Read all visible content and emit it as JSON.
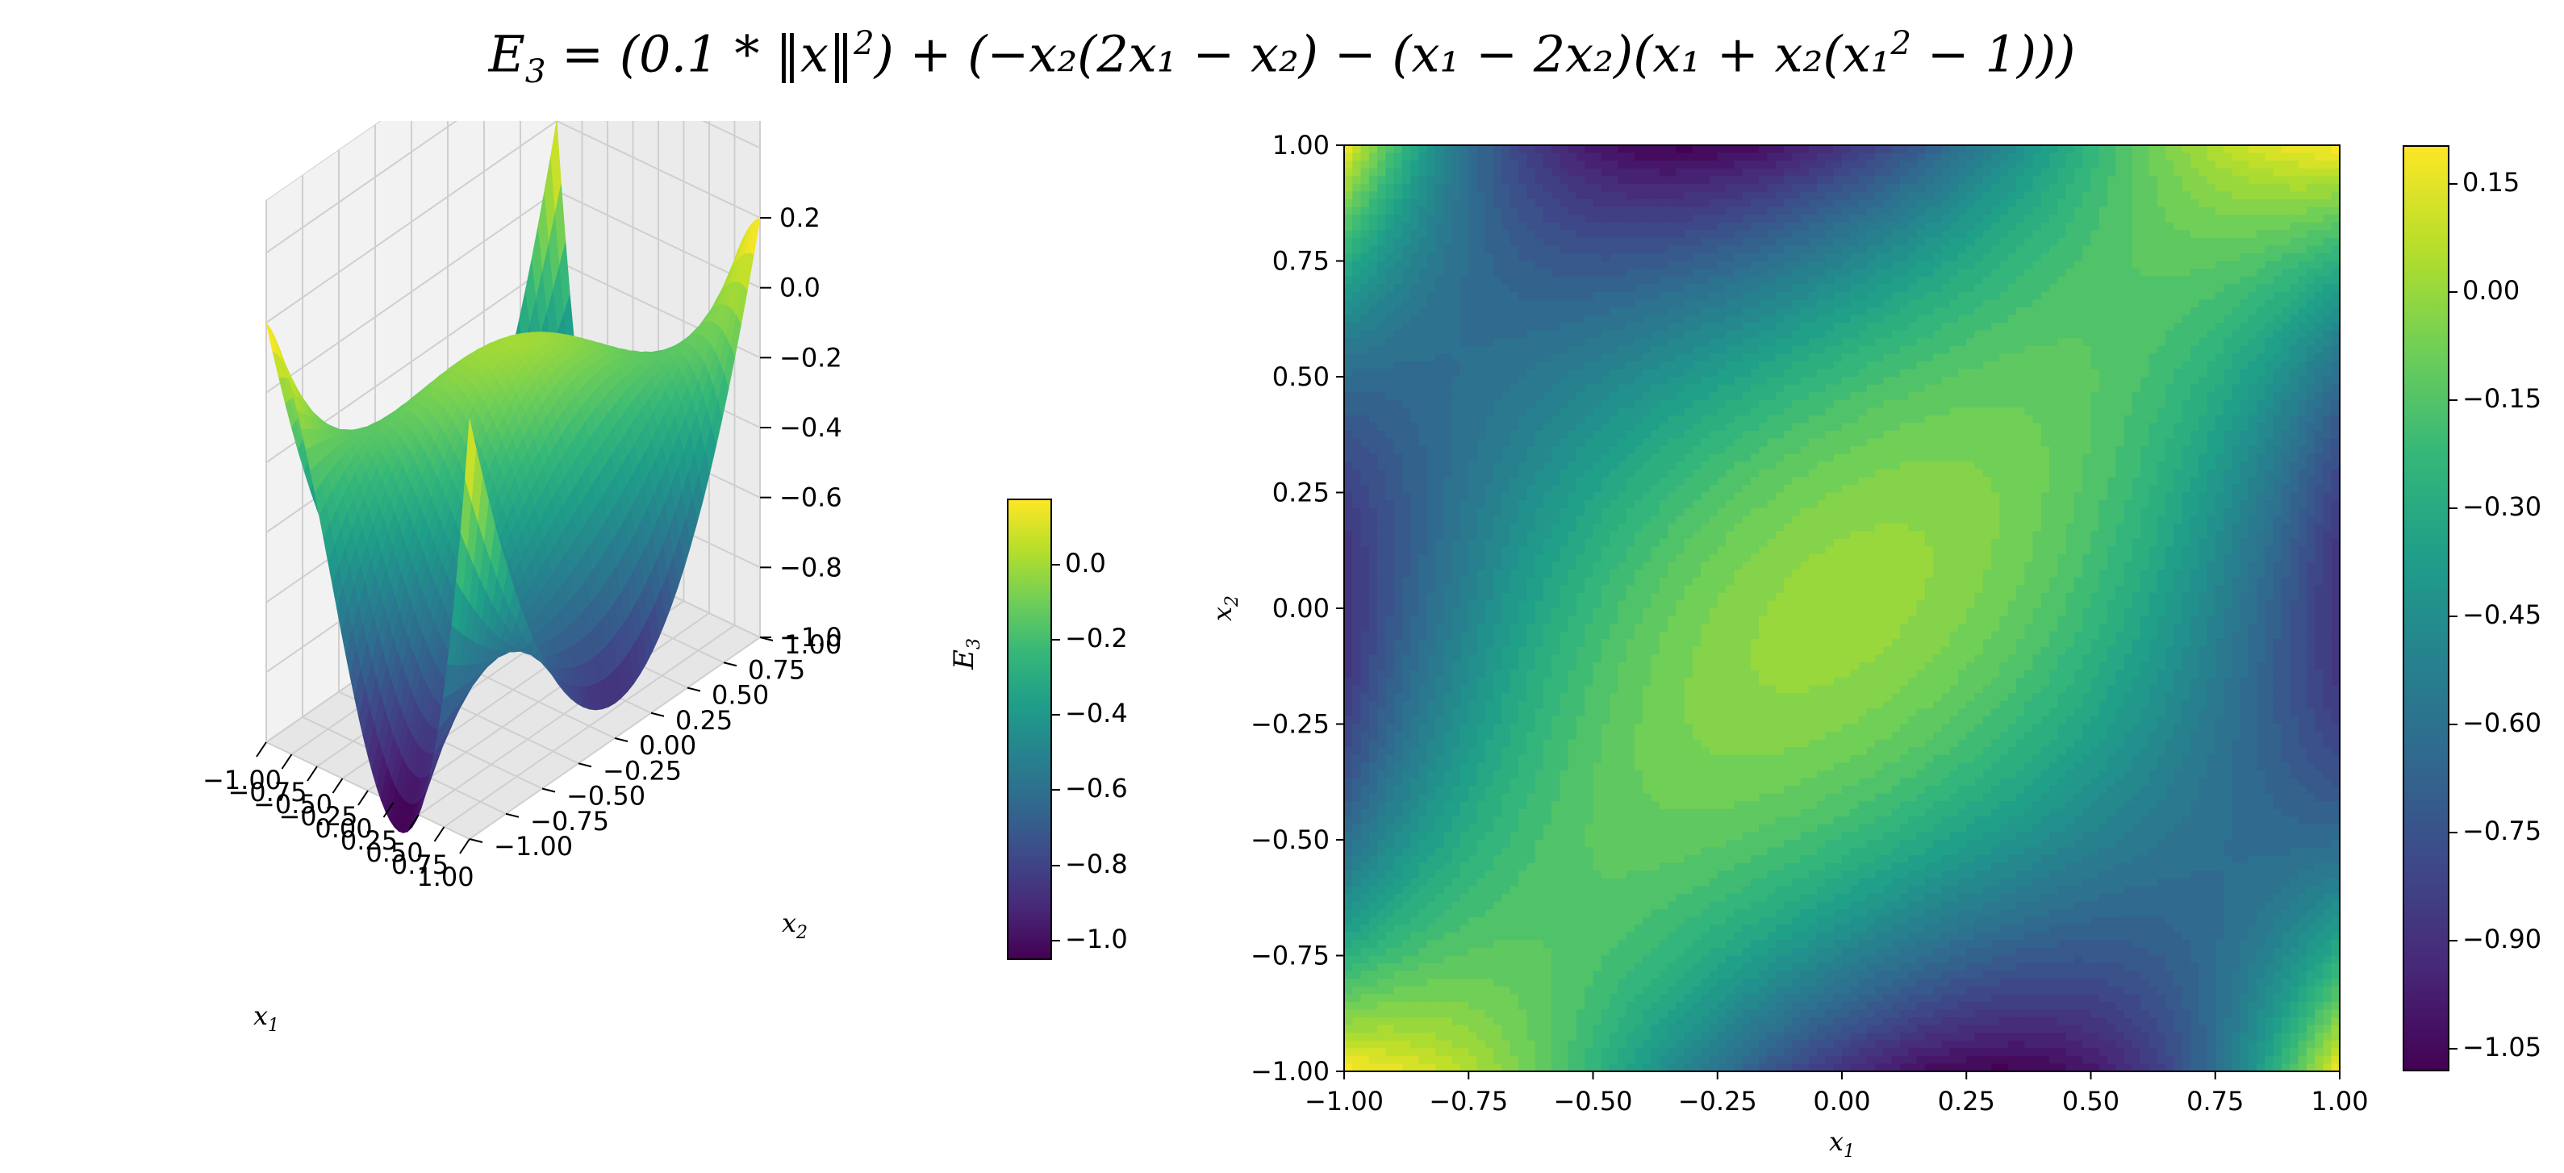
{
  "title": {
    "prefix": "E",
    "prefix_sub": "3",
    "body": " = (0.1 * ‖x‖",
    "sq": "2",
    "rest": ") + (−x₂(2x₁ − x₂) − (x₁ − 2x₂)(x₁ + x₂(x₁",
    "sq2": "2",
    "tail": " − 1)))"
  },
  "chart_data": [
    {
      "type": "surface",
      "title": "",
      "xlabel": "x1",
      "ylabel": "x2",
      "zlabel": "E3",
      "xlim": [
        -1.0,
        1.0
      ],
      "ylim": [
        -1.0,
        1.0
      ],
      "zlim": [
        -1.0,
        0.2
      ],
      "x_ticks": [
        "−1.00",
        "−0.75",
        "−0.50",
        "−0.25",
        "0.00",
        "0.25",
        "0.50",
        "0.75",
        "1.00"
      ],
      "y_ticks": [
        "−1.00",
        "−0.75",
        "−0.50",
        "−0.25",
        "0.00",
        "0.25",
        "0.50",
        "0.75",
        "1.00"
      ],
      "z_ticks": [
        "0.2",
        "0.0",
        "−0.2",
        "−0.4",
        "−0.6",
        "−0.8",
        "−1.0"
      ],
      "colorbar": {
        "label": "E3",
        "ticks": [
          "0.0",
          "−0.2",
          "−0.4",
          "−0.6",
          "−0.8",
          "−1.0"
        ],
        "range": [
          -1.05,
          0.17
        ]
      },
      "colormap": "viridis",
      "clip_color": "#ff0000",
      "grid": true
    },
    {
      "type": "heatmap",
      "title": "",
      "xlabel": "x1",
      "ylabel": "x2",
      "xlim": [
        -1.0,
        1.0
      ],
      "ylim": [
        -1.0,
        1.0
      ],
      "x_ticks": [
        "−1.00",
        "−0.75",
        "−0.50",
        "−0.25",
        "0.00",
        "0.25",
        "0.50",
        "0.75",
        "1.00"
      ],
      "y_ticks": [
        "1.00",
        "0.75",
        "0.50",
        "0.25",
        "0.00",
        "−0.25",
        "−0.50",
        "−0.75",
        "−1.00"
      ],
      "colorbar": {
        "ticks": [
          "0.15",
          "0.00",
          "−0.15",
          "−0.30",
          "−0.45",
          "−0.60",
          "−0.75",
          "−0.90",
          "−1.05"
        ],
        "range": [
          -1.08,
          0.2
        ]
      },
      "colormap": "viridis",
      "clip_color": "#ff0000"
    }
  ],
  "colors": {
    "viridis": [
      "#440154",
      "#482878",
      "#3e4989",
      "#31688e",
      "#26828e",
      "#1f9e89",
      "#35b779",
      "#6ece58",
      "#b5de2b",
      "#fde725"
    ],
    "clip": "#ff0000"
  }
}
